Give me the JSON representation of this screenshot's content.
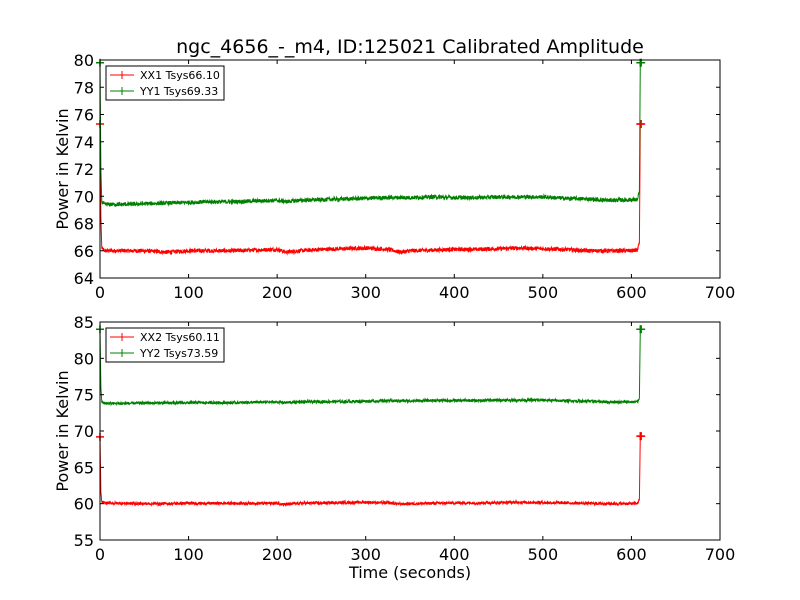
{
  "chart_data": [
    {
      "type": "line",
      "title": "ngc_4656_-_m4, ID:125021 Calibrated Amplitude",
      "xlabel": "",
      "ylabel": "Power in Kelvin",
      "xlim": [
        0,
        700
      ],
      "ylim": [
        64,
        80
      ],
      "xticks": [
        0,
        100,
        200,
        300,
        400,
        500,
        600,
        700
      ],
      "yticks": [
        64,
        66,
        68,
        70,
        72,
        74,
        76,
        78,
        80
      ],
      "legend": "top-left",
      "series": [
        {
          "name": "XX1 Tsys66.10",
          "color": "#ff0000",
          "x": [
            0,
            1,
            2,
            5,
            25,
            50,
            75,
            100,
            125,
            150,
            175,
            200,
            210,
            225,
            250,
            275,
            300,
            325,
            340,
            350,
            375,
            400,
            425,
            450,
            475,
            500,
            525,
            550,
            575,
            600,
            607,
            609,
            610,
            611
          ],
          "y": [
            75.3,
            68.5,
            66.2,
            66.0,
            66.0,
            66.0,
            65.9,
            66.0,
            66.0,
            66.0,
            66.05,
            66.1,
            65.9,
            66.0,
            66.1,
            66.15,
            66.2,
            66.1,
            65.9,
            66.0,
            66.05,
            66.1,
            66.1,
            66.15,
            66.2,
            66.15,
            66.1,
            66.0,
            66.0,
            66.0,
            66.05,
            66.6,
            75.3,
            75.3
          ],
          "noise": 0.15
        },
        {
          "name": "YY1 Tsys69.33",
          "color": "#008000",
          "x": [
            0,
            1,
            2,
            5,
            25,
            50,
            75,
            100,
            125,
            150,
            175,
            200,
            210,
            225,
            250,
            275,
            300,
            325,
            350,
            375,
            400,
            425,
            450,
            475,
            500,
            525,
            550,
            575,
            600,
            607,
            609,
            610,
            611
          ],
          "y": [
            79.8,
            72.0,
            69.6,
            69.4,
            69.4,
            69.45,
            69.5,
            69.55,
            69.6,
            69.6,
            69.65,
            69.7,
            69.6,
            69.7,
            69.75,
            69.8,
            69.85,
            69.9,
            69.9,
            69.95,
            69.9,
            69.9,
            69.95,
            69.95,
            69.95,
            69.85,
            69.8,
            69.7,
            69.75,
            69.75,
            70.4,
            79.8,
            79.8
          ],
          "noise": 0.15
        }
      ]
    },
    {
      "type": "line",
      "title": "",
      "xlabel": "Time (seconds)",
      "ylabel": "Power in Kelvin",
      "xlim": [
        0,
        700
      ],
      "ylim": [
        55,
        85
      ],
      "xticks": [
        0,
        100,
        200,
        300,
        400,
        500,
        600,
        700
      ],
      "yticks": [
        55,
        60,
        65,
        70,
        75,
        80,
        85
      ],
      "legend": "top-left",
      "series": [
        {
          "name": "XX2 Tsys60.11",
          "color": "#ff0000",
          "x": [
            0,
            1,
            2,
            5,
            25,
            50,
            75,
            100,
            125,
            150,
            175,
            200,
            210,
            225,
            250,
            275,
            300,
            325,
            340,
            350,
            375,
            400,
            425,
            450,
            475,
            500,
            525,
            550,
            575,
            600,
            607,
            609,
            610,
            611
          ],
          "y": [
            69.2,
            61.5,
            60.2,
            60.1,
            60.05,
            60.0,
            60.0,
            60.05,
            60.05,
            60.05,
            60.05,
            60.05,
            59.9,
            60.05,
            60.1,
            60.15,
            60.2,
            60.1,
            59.95,
            60.0,
            60.05,
            60.1,
            60.1,
            60.15,
            60.2,
            60.15,
            60.1,
            60.05,
            60.0,
            60.0,
            60.05,
            60.6,
            69.3,
            69.3
          ],
          "noise": 0.2
        },
        {
          "name": "YY2 Tsys73.59",
          "color": "#008000",
          "x": [
            0,
            1,
            2,
            5,
            25,
            50,
            75,
            100,
            125,
            150,
            175,
            200,
            210,
            225,
            250,
            275,
            300,
            325,
            350,
            375,
            400,
            425,
            450,
            475,
            500,
            525,
            550,
            575,
            600,
            607,
            609,
            610,
            611
          ],
          "y": [
            84.0,
            76.0,
            74.0,
            73.8,
            73.8,
            73.85,
            73.85,
            73.9,
            73.9,
            73.9,
            73.95,
            74.0,
            73.9,
            74.0,
            74.05,
            74.05,
            74.1,
            74.15,
            74.15,
            74.2,
            74.2,
            74.2,
            74.25,
            74.25,
            74.25,
            74.15,
            74.1,
            74.0,
            74.0,
            74.0,
            74.6,
            84.0,
            84.0
          ],
          "noise": 0.2
        }
      ]
    }
  ]
}
